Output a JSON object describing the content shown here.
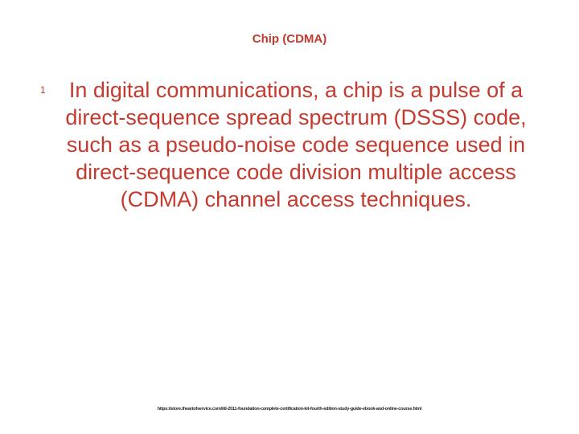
{
  "colors": {
    "text": "#c43a2f",
    "footer": "#1a1a1a",
    "background": "#ffffff"
  },
  "title": {
    "text": "Chip (CDMA)",
    "fontsize": 15
  },
  "bullet": {
    "number": "1",
    "fontsize": 12
  },
  "body": {
    "text": "In digital communications, a chip is a pulse of a direct-sequence spread spectrum (DSSS) code, such as a pseudo-noise code sequence used in direct-sequence code division multiple access (CDMA) channel access techniques.",
    "fontsize": 27,
    "lineheight": 34
  },
  "footer": {
    "text": "https://store.theartofservice.com/itil-2011-foundation-complete-certification-kit-fourth-edition-study-guide-ebook-and-online-course.html",
    "fontsize": 5.5
  }
}
